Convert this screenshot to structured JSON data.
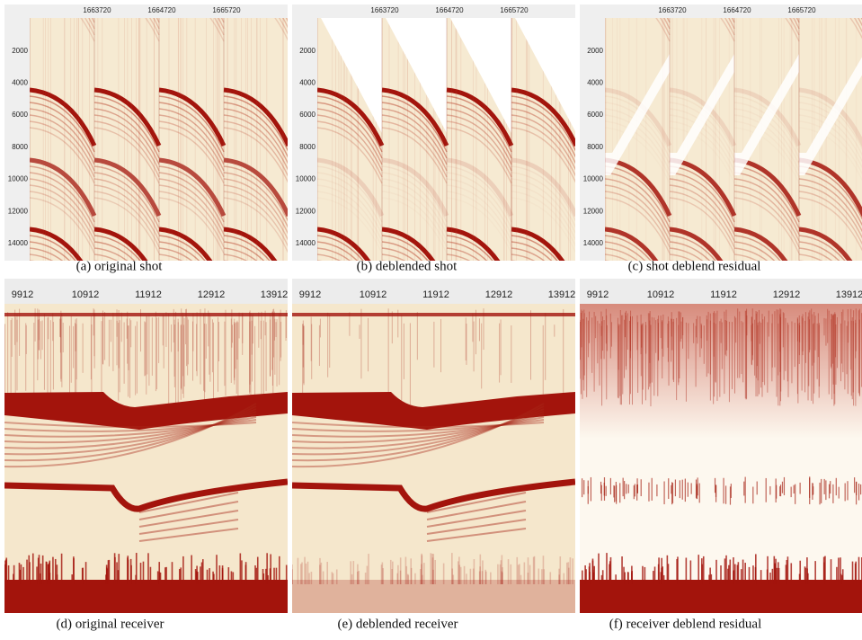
{
  "panels": [
    {
      "caption": "(a) original shot",
      "x_ticks": [
        "1663720",
        "1664720",
        "1665720"
      ],
      "y_ticks": [
        "2000",
        "4000",
        "6000",
        "8000",
        "10000",
        "12000",
        "14000"
      ]
    },
    {
      "caption": "(b) deblended shot",
      "x_ticks": [
        "1663720",
        "1664720",
        "1665720"
      ],
      "y_ticks": [
        "2000",
        "4000",
        "6000",
        "8000",
        "10000",
        "12000",
        "14000"
      ]
    },
    {
      "caption": "(c) shot deblend residual",
      "x_ticks": [
        "1663720",
        "1664720",
        "1665720"
      ],
      "y_ticks": [
        "2000",
        "4000",
        "6000",
        "8000",
        "10000",
        "12000",
        "14000"
      ]
    },
    {
      "caption": "(d) original receiver",
      "x_ticks": [
        "9912",
        "10912",
        "11912",
        "12912",
        "13912"
      ]
    },
    {
      "caption": "(e) deblended receiver",
      "x_ticks": [
        "9912",
        "10912",
        "11912",
        "12912",
        "13912"
      ]
    },
    {
      "caption": "(f) receiver deblend residual",
      "x_ticks": [
        "9912",
        "10912",
        "11912",
        "12912",
        "13912"
      ]
    }
  ]
}
